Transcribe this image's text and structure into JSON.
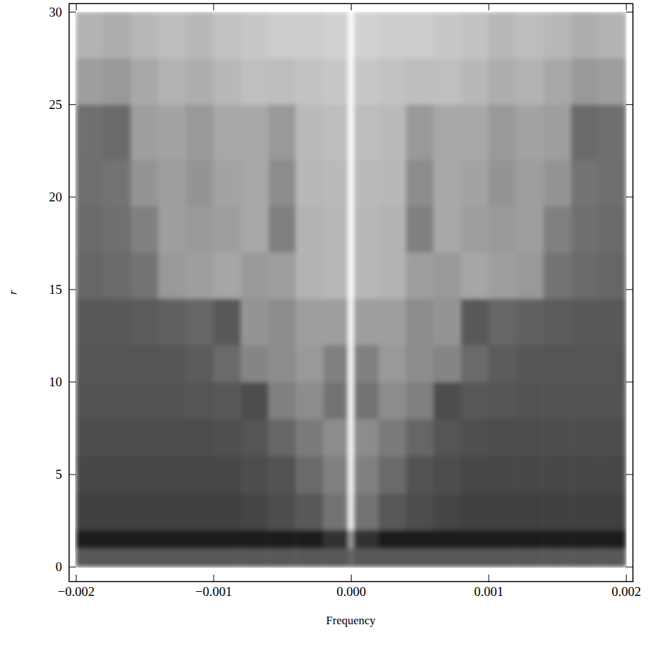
{
  "chart_data": {
    "type": "heatmap",
    "x_label": "Frequency",
    "y_label": "r",
    "xlim": [
      -0.00205,
      0.00205
    ],
    "ylim": [
      -0.8,
      30.45
    ],
    "xticks": [
      {
        "value": -0.002,
        "label": "−0.002"
      },
      {
        "value": -0.001,
        "label": "−0.001"
      },
      {
        "value": 0,
        "label": "0.000"
      },
      {
        "value": 0.001,
        "label": "0.001"
      },
      {
        "value": 0.002,
        "label": "0.002"
      }
    ],
    "yticks": [
      0,
      5,
      10,
      15,
      20,
      25,
      30
    ],
    "grid": false,
    "zlim": [
      0,
      1
    ],
    "x_edges": [
      -0.002,
      -0.0018,
      -0.0016,
      -0.0014,
      -0.0012,
      -0.001,
      -0.0008,
      -0.0006,
      -0.0004,
      -0.0002,
      -2e-05,
      2e-05,
      0.0002,
      0.0004,
      0.0006,
      0.0008,
      0.001,
      0.0012,
      0.0014,
      0.0016,
      0.0018,
      0.002
    ],
    "y_edges": [
      0,
      1,
      2,
      4,
      6,
      8,
      10,
      12,
      14.5,
      17,
      19.5,
      22,
      25,
      27.5,
      30
    ],
    "z": [
      [
        0.35,
        0.35,
        0.35,
        0.35,
        0.35,
        0.35,
        0.35,
        0.35,
        0.35,
        0.35,
        0.4,
        0.35,
        0.35,
        0.35,
        0.35,
        0.35,
        0.35,
        0.35,
        0.35,
        0.35,
        0.35
      ],
      [
        0.12,
        0.12,
        0.12,
        0.12,
        0.12,
        0.12,
        0.12,
        0.12,
        0.12,
        0.2,
        0.6,
        0.2,
        0.12,
        0.12,
        0.12,
        0.12,
        0.12,
        0.12,
        0.12,
        0.12,
        0.12
      ],
      [
        0.25,
        0.25,
        0.25,
        0.25,
        0.25,
        0.25,
        0.27,
        0.3,
        0.35,
        0.45,
        0.95,
        0.45,
        0.35,
        0.3,
        0.27,
        0.25,
        0.25,
        0.25,
        0.25,
        0.25,
        0.25
      ],
      [
        0.28,
        0.28,
        0.28,
        0.28,
        0.28,
        0.28,
        0.3,
        0.32,
        0.42,
        0.5,
        0.97,
        0.5,
        0.42,
        0.32,
        0.3,
        0.28,
        0.28,
        0.28,
        0.28,
        0.28,
        0.28
      ],
      [
        0.3,
        0.3,
        0.3,
        0.3,
        0.3,
        0.31,
        0.33,
        0.4,
        0.48,
        0.55,
        0.98,
        0.55,
        0.48,
        0.4,
        0.33,
        0.31,
        0.3,
        0.3,
        0.3,
        0.3,
        0.3
      ],
      [
        0.32,
        0.32,
        0.32,
        0.32,
        0.33,
        0.35,
        0.3,
        0.5,
        0.55,
        0.45,
        0.98,
        0.45,
        0.55,
        0.5,
        0.3,
        0.35,
        0.33,
        0.32,
        0.32,
        0.32,
        0.32
      ],
      [
        0.33,
        0.33,
        0.33,
        0.34,
        0.36,
        0.42,
        0.52,
        0.55,
        0.6,
        0.5,
        0.98,
        0.5,
        0.6,
        0.55,
        0.52,
        0.42,
        0.36,
        0.34,
        0.33,
        0.33,
        0.33
      ],
      [
        0.35,
        0.35,
        0.36,
        0.38,
        0.4,
        0.35,
        0.58,
        0.55,
        0.62,
        0.62,
        0.98,
        0.62,
        0.62,
        0.55,
        0.58,
        0.35,
        0.4,
        0.38,
        0.36,
        0.35,
        0.35
      ],
      [
        0.4,
        0.42,
        0.45,
        0.6,
        0.62,
        0.65,
        0.6,
        0.62,
        0.7,
        0.72,
        1,
        0.72,
        0.7,
        0.62,
        0.6,
        0.65,
        0.62,
        0.6,
        0.45,
        0.42,
        0.4
      ],
      [
        0.42,
        0.44,
        0.5,
        0.62,
        0.6,
        0.62,
        0.66,
        0.5,
        0.7,
        0.72,
        1,
        0.72,
        0.7,
        0.5,
        0.66,
        0.62,
        0.6,
        0.62,
        0.5,
        0.44,
        0.42
      ],
      [
        0.43,
        0.45,
        0.58,
        0.62,
        0.58,
        0.64,
        0.66,
        0.55,
        0.72,
        0.73,
        1,
        0.73,
        0.72,
        0.55,
        0.66,
        0.64,
        0.58,
        0.62,
        0.58,
        0.45,
        0.43
      ],
      [
        0.44,
        0.42,
        0.62,
        0.64,
        0.6,
        0.66,
        0.66,
        0.6,
        0.73,
        0.74,
        1,
        0.74,
        0.73,
        0.6,
        0.66,
        0.66,
        0.6,
        0.64,
        0.62,
        0.42,
        0.44
      ],
      [
        0.62,
        0.6,
        0.66,
        0.7,
        0.68,
        0.72,
        0.75,
        0.74,
        0.76,
        0.78,
        1,
        0.78,
        0.76,
        0.74,
        0.75,
        0.72,
        0.68,
        0.7,
        0.66,
        0.6,
        0.62
      ],
      [
        0.7,
        0.68,
        0.72,
        0.74,
        0.72,
        0.76,
        0.78,
        0.8,
        0.8,
        0.82,
        1,
        0.82,
        0.8,
        0.8,
        0.78,
        0.76,
        0.72,
        0.74,
        0.72,
        0.68,
        0.7
      ]
    ]
  }
}
